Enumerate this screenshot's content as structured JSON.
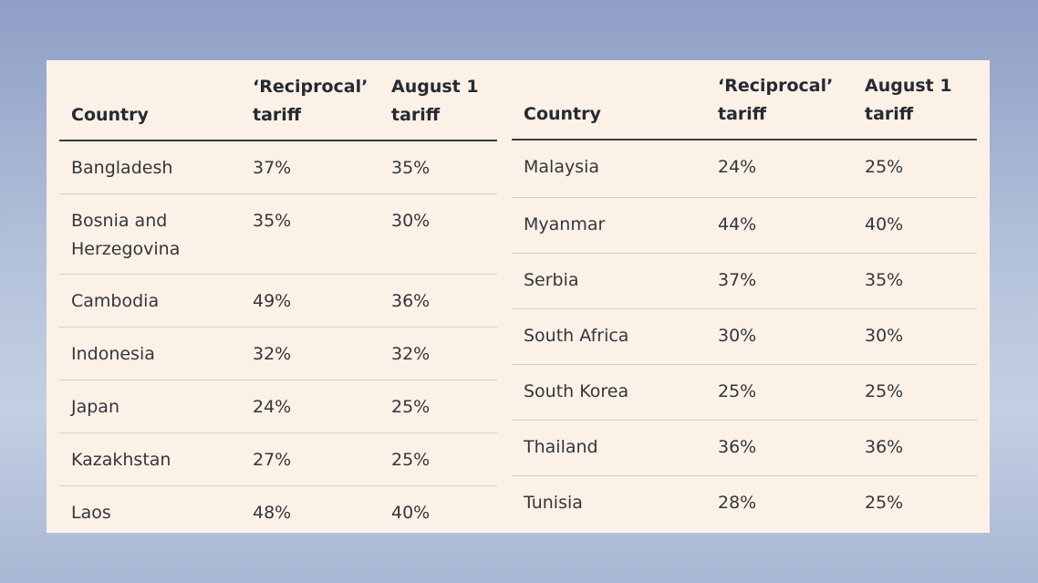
{
  "headers": {
    "country": "Country",
    "reciprocal": "‘Reciprocal’\ntariff",
    "august": "August 1\ntariff"
  },
  "left_rows": [
    {
      "country": "Bangladesh",
      "reciprocal": "37%",
      "august": "35%"
    },
    {
      "country": "Bosnia and\nHerzegovina",
      "reciprocal": "35%",
      "august": "30%"
    },
    {
      "country": "Cambodia",
      "reciprocal": "49%",
      "august": "36%"
    },
    {
      "country": "Indonesia",
      "reciprocal": "32%",
      "august": "32%"
    },
    {
      "country": "Japan",
      "reciprocal": "24%",
      "august": "25%"
    },
    {
      "country": "Kazakhstan",
      "reciprocal": "27%",
      "august": "25%"
    },
    {
      "country": "Laos",
      "reciprocal": "48%",
      "august": "40%"
    }
  ],
  "right_rows": [
    {
      "country": "Malaysia",
      "reciprocal": "24%",
      "august": "25%"
    },
    {
      "country": "Myanmar",
      "reciprocal": "44%",
      "august": "40%"
    },
    {
      "country": "Serbia",
      "reciprocal": "37%",
      "august": "35%"
    },
    {
      "country": "South Africa",
      "reciprocal": "30%",
      "august": "30%"
    },
    {
      "country": "South Korea",
      "reciprocal": "25%",
      "august": "25%"
    },
    {
      "country": "Thailand",
      "reciprocal": "36%",
      "august": "36%"
    },
    {
      "country": "Tunisia",
      "reciprocal": "28%",
      "august": "25%"
    }
  ]
}
